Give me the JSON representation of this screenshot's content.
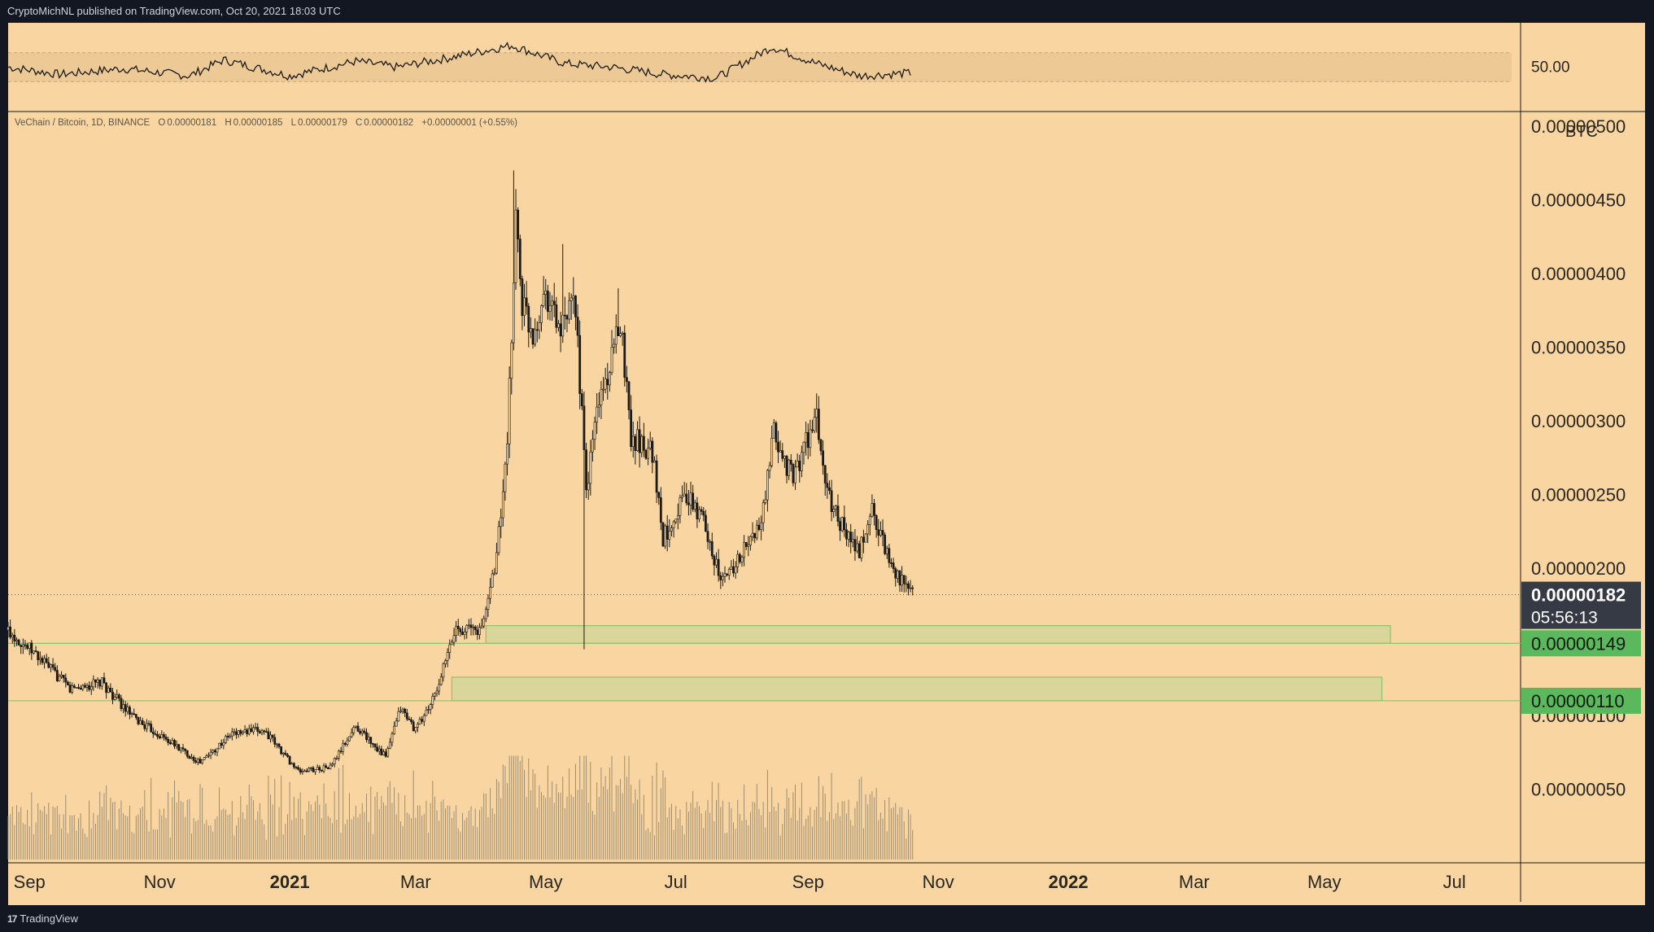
{
  "header": {
    "published_text": "CryptoMichNL published on TradingView.com, Oct 20, 2021 18:03 UTC"
  },
  "footer": {
    "logo_text": "TradingView",
    "logo_mark": "17"
  },
  "legend": {
    "symbol": "VeChain / Bitcoin, 1D, BINANCE",
    "open_label": "O",
    "open": "0.00000181",
    "high_label": "H",
    "high": "0.00000185",
    "low_label": "L",
    "low": "0.00000179",
    "close_label": "C",
    "close": "0.00000182",
    "change": "+0.00000001 (+0.55%)"
  },
  "colors": {
    "background": "#f9d6a1",
    "frame": "#131722",
    "candle": "#1c1a16",
    "zone_fill": "#d8d69b",
    "zone_stroke": "#8fc46a",
    "price_tag_dark": "#363a45",
    "price_tag_green": "#5cb85c",
    "rsi_band": "#ecc995"
  },
  "chart_data": {
    "type": "candlestick",
    "symbol": "VeChain / Bitcoin",
    "interval": "1D",
    "exchange": "BINANCE",
    "price_unit": "BTC",
    "x_range": [
      "2020-08-22",
      "2022-08-01"
    ],
    "y_range": [
      0,
      5.1e-06
    ],
    "x_ticks": [
      {
        "label": "Sep",
        "date": "2020-09-01",
        "bold": false
      },
      {
        "label": "Nov",
        "date": "2020-11-01",
        "bold": false
      },
      {
        "label": "2021",
        "date": "2021-01-01",
        "bold": true
      },
      {
        "label": "Mar",
        "date": "2021-03-01",
        "bold": false
      },
      {
        "label": "May",
        "date": "2021-05-01",
        "bold": false
      },
      {
        "label": "Jul",
        "date": "2021-07-01",
        "bold": false
      },
      {
        "label": "Sep",
        "date": "2021-09-01",
        "bold": false
      },
      {
        "label": "Nov",
        "date": "2021-11-01",
        "bold": false
      },
      {
        "label": "2022",
        "date": "2022-01-01",
        "bold": true
      },
      {
        "label": "Mar",
        "date": "2022-03-01",
        "bold": false
      },
      {
        "label": "May",
        "date": "2022-05-01",
        "bold": false
      },
      {
        "label": "Jul",
        "date": "2022-07-01",
        "bold": false
      }
    ],
    "y_ticks": [
      {
        "label": "0.00000500",
        "value": 5e-06
      },
      {
        "label": "0.00000450",
        "value": 4.5e-06
      },
      {
        "label": "0.00000400",
        "value": 4e-06
      },
      {
        "label": "0.00000350",
        "value": 3.5e-06
      },
      {
        "label": "0.00000300",
        "value": 3e-06
      },
      {
        "label": "0.00000250",
        "value": 2.5e-06
      },
      {
        "label": "0.00000200",
        "value": 2e-06
      },
      {
        "label": "0.00000100",
        "value": 1e-06
      },
      {
        "label": "0.00000050",
        "value": 5e-07
      }
    ],
    "price_path": [
      [
        "2020-08-22",
        1.58e-06
      ],
      [
        "2020-09-05",
        1.4e-06
      ],
      [
        "2020-09-20",
        1.18e-06
      ],
      [
        "2020-10-05",
        1.22e-06
      ],
      [
        "2020-10-20",
        9.8e-07
      ],
      [
        "2020-11-05",
        8.3e-07
      ],
      [
        "2020-11-20",
        6.8e-07
      ],
      [
        "2020-12-05",
        8.8e-07
      ],
      [
        "2020-12-20",
        9e-07
      ],
      [
        "2021-01-05",
        6.2e-07
      ],
      [
        "2021-01-20",
        6.5e-07
      ],
      [
        "2021-02-01",
        9.3e-07
      ],
      [
        "2021-02-15",
        7.2e-07
      ],
      [
        "2021-02-22",
        1.05e-06
      ],
      [
        "2021-03-01",
        9e-07
      ],
      [
        "2021-03-10",
        1.13e-06
      ],
      [
        "2021-03-20",
        1.6e-06
      ],
      [
        "2021-04-01",
        1.58e-06
      ],
      [
        "2021-04-08",
        2.1e-06
      ],
      [
        "2021-04-13",
        2.8e-06
      ],
      [
        "2021-04-17",
        4.4e-06
      ],
      [
        "2021-04-20",
        3.8e-06
      ],
      [
        "2021-04-25",
        3.6e-06
      ],
      [
        "2021-05-01",
        3.9e-06
      ],
      [
        "2021-05-08",
        3.6e-06
      ],
      [
        "2021-05-15",
        3.8e-06
      ],
      [
        "2021-05-20",
        2.5e-06
      ],
      [
        "2021-05-25",
        3.1e-06
      ],
      [
        "2021-06-01",
        3.4e-06
      ],
      [
        "2021-06-05",
        3.7e-06
      ],
      [
        "2021-06-10",
        2.9e-06
      ],
      [
        "2021-06-20",
        2.8e-06
      ],
      [
        "2021-06-25",
        2.2e-06
      ],
      [
        "2021-07-05",
        2.5e-06
      ],
      [
        "2021-07-15",
        2.3e-06
      ],
      [
        "2021-07-22",
        1.9e-06
      ],
      [
        "2021-08-01",
        2.1e-06
      ],
      [
        "2021-08-10",
        2.3e-06
      ],
      [
        "2021-08-16",
        2.9e-06
      ],
      [
        "2021-08-25",
        2.6e-06
      ],
      [
        "2021-09-01",
        2.9e-06
      ],
      [
        "2021-09-05",
        3e-06
      ],
      [
        "2021-09-10",
        2.5e-06
      ],
      [
        "2021-09-20",
        2.2e-06
      ],
      [
        "2021-09-25",
        2.1e-06
      ],
      [
        "2021-10-01",
        2.4e-06
      ],
      [
        "2021-10-08",
        2.1e-06
      ],
      [
        "2021-10-15",
        1.9e-06
      ],
      [
        "2021-10-20",
        1.82e-06
      ]
    ],
    "wicks": [
      {
        "date": "2021-04-16",
        "high": 4.7e-06
      },
      {
        "date": "2021-05-19",
        "low": 1.45e-06
      },
      {
        "date": "2021-05-09",
        "high": 4.2e-06
      },
      {
        "date": "2021-06-04",
        "high": 3.9e-06
      }
    ],
    "last_price": 1.82e-06,
    "last_price_label": "0.00000182",
    "countdown": "05:56:13",
    "support_zones": [
      {
        "price": 1.49e-06,
        "label": "0.00000149",
        "zone_low": 1.49e-06,
        "zone_high": 1.61e-06,
        "start": "2021-04-03",
        "end": "2022-06-01"
      },
      {
        "price": 1.1e-06,
        "label": "0.00000110",
        "zone_low": 1.1e-06,
        "zone_high": 1.26e-06,
        "start": "2021-03-18",
        "end": "2022-05-28"
      }
    ],
    "rsi": {
      "label": "50.00",
      "band_upper": 70,
      "band_lower": 30,
      "path": [
        [
          "2020-08-22",
          50
        ],
        [
          "2020-09-15",
          40
        ],
        [
          "2020-10-15",
          48
        ],
        [
          "2020-11-15",
          38
        ],
        [
          "2020-12-01",
          60
        ],
        [
          "2021-01-01",
          38
        ],
        [
          "2021-02-01",
          58
        ],
        [
          "2021-02-20",
          50
        ],
        [
          "2021-03-15",
          62
        ],
        [
          "2021-04-15",
          80
        ],
        [
          "2021-05-10",
          55
        ],
        [
          "2021-06-01",
          50
        ],
        [
          "2021-06-25",
          40
        ],
        [
          "2021-07-20",
          35
        ],
        [
          "2021-08-15",
          78
        ],
        [
          "2021-09-05",
          55
        ],
        [
          "2021-09-25",
          38
        ],
        [
          "2021-10-20",
          42
        ]
      ]
    },
    "volume_max_ratio": 1.0
  }
}
